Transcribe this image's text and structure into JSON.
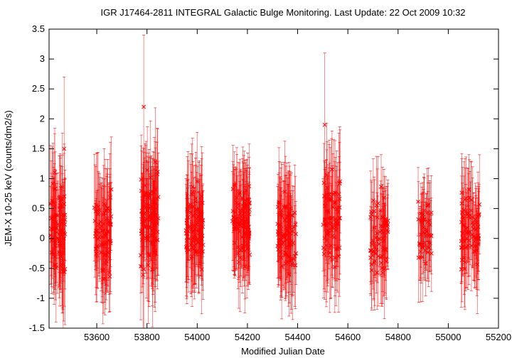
{
  "chart_data": {
    "type": "scatter",
    "title": "IGR J17464-2811   INTEGRAL Galactic Bulge Monitoring.  Last Update: 22 Oct 2009 10:32",
    "xlabel": "Modified Julian Date",
    "ylabel": "JEM-X 10-25 keV (counts/dm2/s)",
    "xlim": [
      53410,
      55200
    ],
    "ylim": [
      -1.5,
      3.5
    ],
    "xticks": [
      53600,
      53800,
      54000,
      54200,
      54400,
      54600,
      54800,
      55000,
      55200
    ],
    "yticks": [
      -1.5,
      -1,
      -0.5,
      0,
      0.5,
      1,
      1.5,
      2,
      2.5,
      3,
      3.5
    ],
    "grid": false,
    "legend": "none",
    "marker": "x",
    "error_bars": "vertical",
    "color": "#ff0000",
    "visibility_windows": [
      {
        "start": 53415,
        "end": 53475,
        "count": 85,
        "mean": 0.15,
        "scatter": 0.55,
        "err": 0.75
      },
      {
        "start": 53590,
        "end": 53660,
        "count": 75,
        "mean": 0.1,
        "scatter": 0.5,
        "err": 0.75
      },
      {
        "start": 53775,
        "end": 53845,
        "count": 110,
        "mean": 0.35,
        "scatter": 0.55,
        "err": 0.8
      },
      {
        "start": 53955,
        "end": 54025,
        "count": 95,
        "mean": 0.2,
        "scatter": 0.45,
        "err": 0.7
      },
      {
        "start": 54140,
        "end": 54210,
        "count": 100,
        "mean": 0.2,
        "scatter": 0.45,
        "err": 0.7
      },
      {
        "start": 54320,
        "end": 54395,
        "count": 90,
        "mean": 0.1,
        "scatter": 0.45,
        "err": 0.7
      },
      {
        "start": 54500,
        "end": 54570,
        "count": 75,
        "mean": 0.3,
        "scatter": 0.5,
        "err": 0.8
      },
      {
        "start": 54690,
        "end": 54760,
        "count": 70,
        "mean": 0.05,
        "scatter": 0.4,
        "err": 0.65
      },
      {
        "start": 54880,
        "end": 54935,
        "count": 50,
        "mean": 0.15,
        "scatter": 0.4,
        "err": 0.6
      },
      {
        "start": 55050,
        "end": 55125,
        "count": 75,
        "mean": 0.1,
        "scatter": 0.45,
        "err": 0.65
      }
    ],
    "annotations": {
      "high_points": [
        {
          "x": 53787,
          "y": 2.2
        },
        {
          "x": 54508,
          "y": 1.9
        },
        {
          "x": 53470,
          "y": 1.5
        }
      ]
    }
  }
}
